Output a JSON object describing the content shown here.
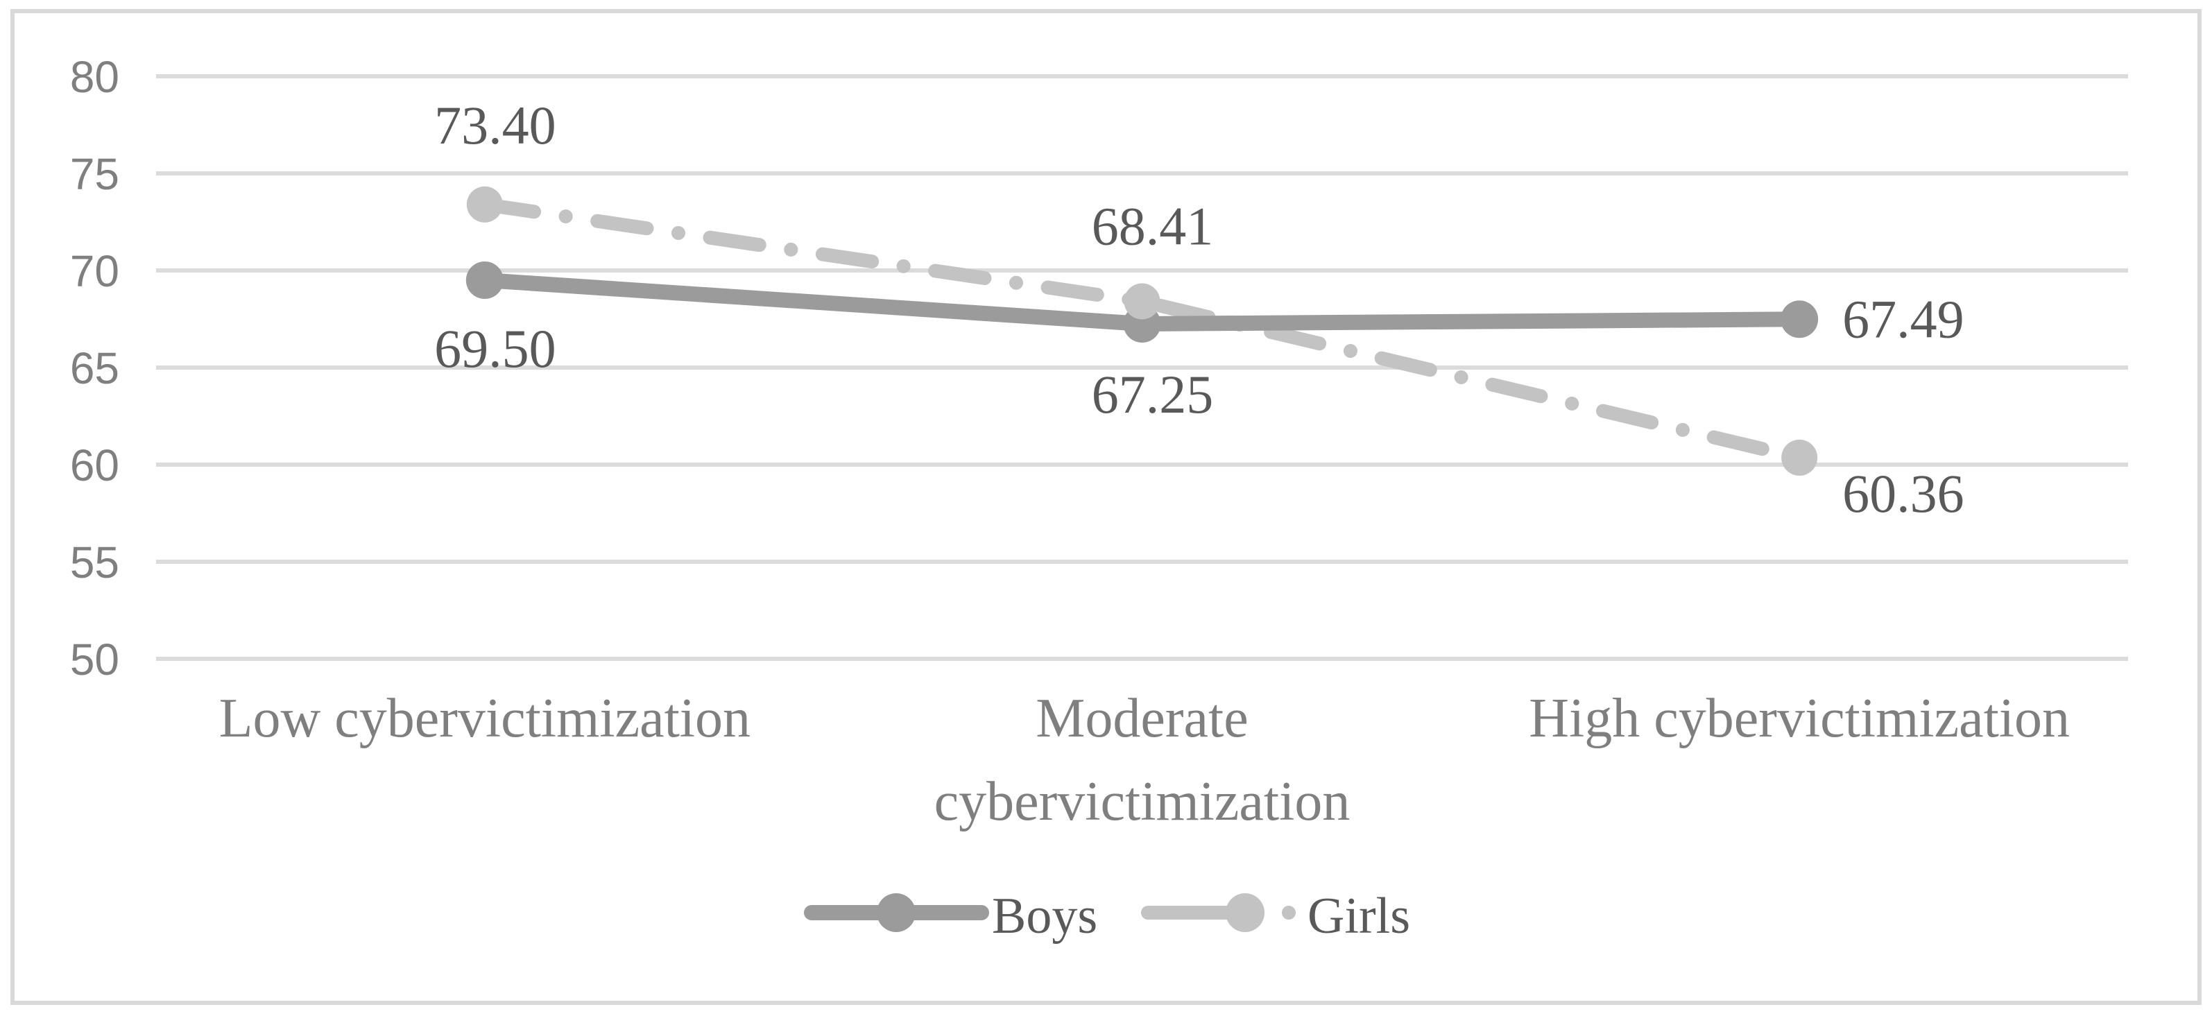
{
  "figure": {
    "background_color": "#FFFFFF",
    "border_color": "#D9D9D9",
    "gridline_color": "#DBDBDB",
    "axis_text_color": "#7F7F7F",
    "data_label_color": "#595959"
  },
  "chart_data": {
    "type": "line",
    "title": "",
    "xlabel": "",
    "ylabel": "",
    "grid": "horizontal",
    "legend_position": "bottom",
    "ylim": [
      50,
      80
    ],
    "ytick_step": 5,
    "yticks": [
      "80",
      "75",
      "70",
      "65",
      "60",
      "55",
      "50"
    ],
    "ytick_values": [
      80,
      75,
      70,
      65,
      60,
      55,
      50
    ],
    "categories": [
      "Low cybervictimization",
      "Moderate cybervictimization",
      "High cybervictimization"
    ],
    "category_display_lines": [
      [
        "Low cybervictimization"
      ],
      [
        "Moderate",
        "cybervictimization"
      ],
      [
        "High cybervictimization"
      ]
    ],
    "series": [
      {
        "name": "Boys",
        "values": [
          69.5,
          67.25,
          67.49
        ],
        "data_labels": [
          "69.50",
          "67.25",
          "67.49"
        ],
        "color": "#9B9B9B",
        "line_style": "solid",
        "marker": "circle"
      },
      {
        "name": "Girls",
        "values": [
          73.4,
          68.41,
          60.36
        ],
        "data_labels": [
          "73.40",
          "68.41",
          "60.36"
        ],
        "color": "#C3C3C3",
        "line_style": "dash-dot",
        "marker": "circle"
      }
    ]
  }
}
